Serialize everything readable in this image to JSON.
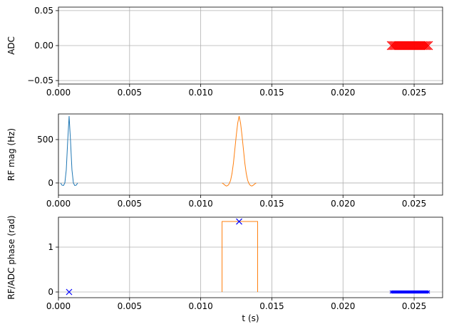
{
  "chart_data": [
    {
      "type": "line",
      "ylabel": "ADC",
      "grid": true,
      "xlim": [
        0,
        0.027
      ],
      "ylim": [
        -0.055,
        0.055
      ],
      "xticks": [
        {
          "value": 0,
          "label": "0.000"
        },
        {
          "value": 0.005,
          "label": "0.005"
        },
        {
          "value": 0.01,
          "label": "0.010"
        },
        {
          "value": 0.015,
          "label": "0.015"
        },
        {
          "value": 0.02,
          "label": "0.020"
        },
        {
          "value": 0.025,
          "label": "0.025"
        }
      ],
      "yticks": [
        {
          "value": -0.05,
          "label": "−0.05"
        },
        {
          "value": 0,
          "label": "0.00"
        },
        {
          "value": 0.05,
          "label": "0.05"
        }
      ],
      "series": [
        {
          "color": "#ff0000",
          "marker": "x",
          "markersize": 6,
          "linestyle": "none",
          "x": [
            0.0234,
            0.0235,
            0.0236,
            0.0237,
            0.0238,
            0.0239,
            0.024,
            0.0241,
            0.0242,
            0.0243,
            0.0244,
            0.0245,
            0.0246,
            0.0247,
            0.0248,
            0.0249,
            0.025,
            0.0251,
            0.0252,
            0.0253,
            0.0254,
            0.0255,
            0.0256,
            0.0257,
            0.0258,
            0.0259,
            0.026
          ],
          "values": [
            0,
            0,
            0,
            0,
            0,
            0,
            0,
            0,
            0,
            0,
            0,
            0,
            0,
            0,
            0,
            0,
            0,
            0,
            0,
            0,
            0,
            0,
            0,
            0,
            0,
            0,
            0
          ]
        }
      ]
    },
    {
      "type": "line",
      "ylabel": "RF mag (Hz)",
      "grid": true,
      "xlim": [
        0,
        0.027
      ],
      "ylim": [
        -140,
        795
      ],
      "xticks": [
        {
          "value": 0,
          "label": "0.000"
        },
        {
          "value": 0.005,
          "label": "0.005"
        },
        {
          "value": 0.01,
          "label": "0.010"
        },
        {
          "value": 0.015,
          "label": "0.015"
        },
        {
          "value": 0.02,
          "label": "0.020"
        },
        {
          "value": 0.025,
          "label": "0.025"
        }
      ],
      "yticks": [
        0,
        500
      ],
      "series": [
        {
          "color": "#1f77b4",
          "linestyle": "solid",
          "x": [
            0.00015,
            0.00025,
            0.00035,
            0.00045,
            0.00055,
            0.00065,
            0.00075,
            0.00085,
            0.00095,
            0.00105,
            0.00115,
            0.00125,
            0.00135
          ],
          "values": [
            0,
            -25,
            -30,
            0,
            150,
            480,
            770,
            480,
            150,
            0,
            -30,
            -25,
            0
          ]
        },
        {
          "color": "#ff7f0e",
          "linestyle": "solid",
          "x": [
            0.0115,
            0.0116,
            0.0117,
            0.0118,
            0.0119,
            0.012,
            0.0121,
            0.0122,
            0.0123,
            0.0124,
            0.0125,
            0.0126,
            0.0127,
            0.0128,
            0.0129,
            0.013,
            0.0131,
            0.0132,
            0.0133,
            0.0134,
            0.0135,
            0.0136,
            0.0137,
            0.0138,
            0.0139
          ],
          "values": [
            0,
            -10,
            -25,
            -35,
            -30,
            -10,
            30,
            110,
            230,
            390,
            550,
            690,
            770,
            690,
            550,
            390,
            230,
            110,
            30,
            -10,
            -30,
            -35,
            -25,
            -10,
            0
          ]
        }
      ]
    },
    {
      "type": "line",
      "ylabel": "RF/ADC phase (rad)",
      "xlabel": "t (s)",
      "grid": true,
      "xlim": [
        0,
        0.027
      ],
      "ylim": [
        -0.127,
        1.667
      ],
      "xticks": [
        {
          "value": 0,
          "label": "0.000"
        },
        {
          "value": 0.005,
          "label": "0.005"
        },
        {
          "value": 0.01,
          "label": "0.010"
        },
        {
          "value": 0.015,
          "label": "0.015"
        },
        {
          "value": 0.02,
          "label": "0.020"
        },
        {
          "value": 0.025,
          "label": "0.025"
        }
      ],
      "yticks": [
        0,
        1
      ],
      "series": [
        {
          "color": "#ff7f0e",
          "linestyle": "solid",
          "x": [
            0.0115,
            0.0115,
            0.014,
            0.014
          ],
          "values": [
            0,
            1.5708,
            1.5708,
            0
          ]
        },
        {
          "color": "#0000ff",
          "marker": "x",
          "markersize": 4,
          "linestyle": "none",
          "x": [
            0.00075,
            0.0127
          ],
          "values": [
            0,
            1.5708
          ]
        },
        {
          "color": "#0000ff",
          "marker": "x",
          "markersize": 2,
          "linestyle": "none",
          "x": [
            0.0234,
            0.0235,
            0.0236,
            0.0237,
            0.0238,
            0.0239,
            0.024,
            0.0241,
            0.0242,
            0.0243,
            0.0244,
            0.0245,
            0.0246,
            0.0247,
            0.0248,
            0.0249,
            0.025,
            0.0251,
            0.0252,
            0.0253,
            0.0254,
            0.0255,
            0.0256,
            0.0257,
            0.0258,
            0.0259,
            0.026
          ],
          "values": [
            0,
            0,
            0,
            0,
            0,
            0,
            0,
            0,
            0,
            0,
            0,
            0,
            0,
            0,
            0,
            0,
            0,
            0,
            0,
            0,
            0,
            0,
            0,
            0,
            0,
            0,
            0
          ]
        }
      ]
    }
  ]
}
